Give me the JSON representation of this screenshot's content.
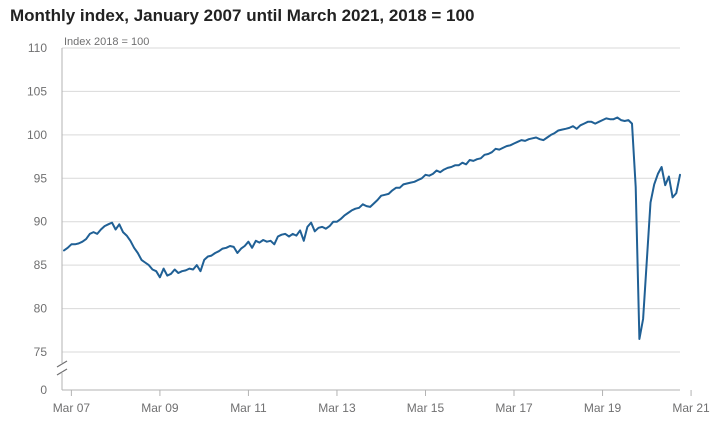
{
  "chart_data": {
    "type": "line",
    "title": "Monthly index, January 2007 until March 2021, 2018 = 100",
    "unit_label": "Index 2018 = 100",
    "xlabel": "",
    "ylabel": "",
    "ylim": [
      75,
      110
    ],
    "y_ticks": [
      "0",
      "75",
      "80",
      "85",
      "90",
      "95",
      "100",
      "105",
      "110"
    ],
    "x_ticks": [
      "Mar 07",
      "Mar 09",
      "Mar 11",
      "Mar 13",
      "Mar 15",
      "Mar 17",
      "Mar 19",
      "Mar 21"
    ],
    "axis_break": true,
    "grid": "horizontal",
    "series_color": "#206095",
    "series": [
      {
        "values": [
          86.7,
          87.0,
          87.4,
          87.4,
          87.5,
          87.7,
          88.0,
          88.6,
          88.8,
          88.6,
          89.1,
          89.5,
          89.7,
          89.9,
          89.1,
          89.7,
          88.8,
          88.4,
          87.8,
          87.0,
          86.4,
          85.6,
          85.3,
          85.0,
          84.5,
          84.3,
          83.6,
          84.6,
          83.8,
          84.0,
          84.5,
          84.1,
          84.3,
          84.4,
          84.6,
          84.5,
          85.0,
          84.3,
          85.6,
          86.0,
          86.1,
          86.4,
          86.6,
          86.9,
          87.0,
          87.2,
          87.1,
          86.4,
          86.9,
          87.2,
          87.7,
          87.0,
          87.8,
          87.6,
          87.9,
          87.7,
          87.8,
          87.4,
          88.3,
          88.5,
          88.6,
          88.3,
          88.6,
          88.4,
          89.0,
          87.8,
          89.4,
          89.9,
          88.9,
          89.3,
          89.4,
          89.2,
          89.5,
          90.0,
          90.0,
          90.3,
          90.7,
          91.0,
          91.3,
          91.5,
          91.6,
          92.0,
          91.8,
          91.7,
          92.1,
          92.5,
          93.0,
          93.1,
          93.2,
          93.6,
          93.9,
          93.9,
          94.3,
          94.4,
          94.5,
          94.6,
          94.8,
          95.0,
          95.4,
          95.3,
          95.5,
          95.9,
          95.7,
          96.0,
          96.2,
          96.3,
          96.5,
          96.5,
          96.8,
          96.6,
          97.1,
          97.0,
          97.2,
          97.3,
          97.7,
          97.8,
          98.0,
          98.4,
          98.3,
          98.5,
          98.7,
          98.8,
          99.0,
          99.2,
          99.4,
          99.3,
          99.5,
          99.6,
          99.7,
          99.5,
          99.4,
          99.7,
          100.0,
          100.2,
          100.5,
          100.6,
          100.7,
          100.8,
          101.0,
          100.7,
          101.1,
          101.3,
          101.5,
          101.5,
          101.3,
          101.5,
          101.7,
          101.9,
          101.8,
          101.8,
          102.0,
          101.7,
          101.6,
          101.7,
          101.3,
          94.0,
          76.5,
          78.8,
          85.5,
          92.2,
          94.3,
          95.5,
          96.3,
          94.2,
          95.2,
          92.8,
          93.3,
          95.4
        ]
      }
    ]
  }
}
